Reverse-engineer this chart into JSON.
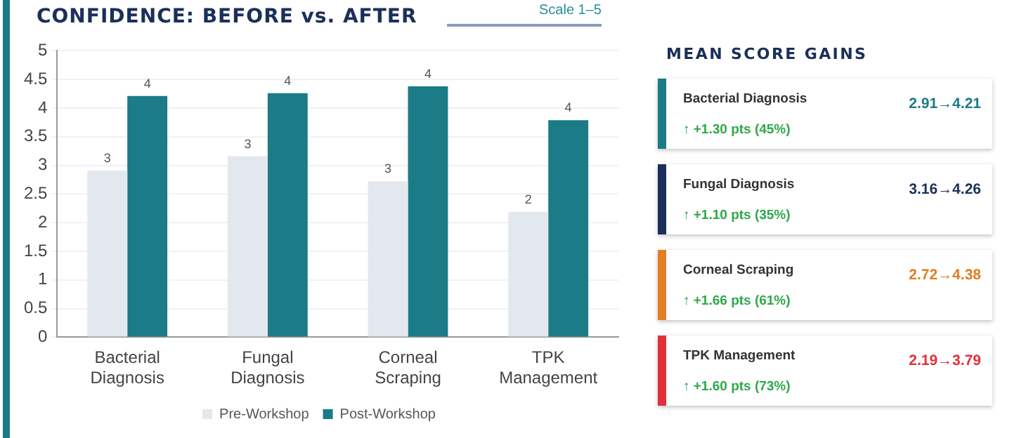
{
  "chart_data": [
    {
      "type": "bar",
      "title": "CONFIDENCE: BEFORE vs. AFTER",
      "subtitle": "Scale 1–5",
      "categories": [
        "Bacterial Diagnosis",
        "Fungal Diagnosis",
        "Corneal Scraping",
        "TPK Management"
      ],
      "series": [
        {
          "name": "Pre-Workshop",
          "color": "#e3e7ee",
          "values": [
            2.91,
            3.16,
            2.72,
            2.19
          ],
          "value_labels": [
            "3",
            "3",
            "3",
            "2"
          ]
        },
        {
          "name": "Post-Workshop",
          "color": "#1b7b86",
          "values": [
            4.21,
            4.26,
            4.38,
            3.79
          ],
          "value_labels": [
            "4",
            "4",
            "4",
            "4"
          ]
        }
      ],
      "ylim": [
        0,
        5
      ],
      "yticks": [
        0,
        0.5,
        1,
        1.5,
        2,
        2.5,
        3,
        3.5,
        4,
        4.5,
        5
      ],
      "grid": "y",
      "legend": "bottom"
    },
    {
      "type": "other",
      "title": "MEAN SCORE GAINS",
      "categories": [
        "Bacterial Diagnosis",
        "Fungal Diagnosis",
        "Corneal Scraping",
        "TPK Management"
      ],
      "value_labels": [
        "↑ +1.30 pts  (45%)",
        "↑ +1.10 pts  (35%)",
        "↑ +1.66 pts  (61%)",
        "↑ +1.60 pts  (73%)"
      ],
      "annotations": [
        "2.91→4.21",
        "3.16→4.26",
        "2.72→4.38",
        "2.19→3.79"
      ]
    }
  ]
}
